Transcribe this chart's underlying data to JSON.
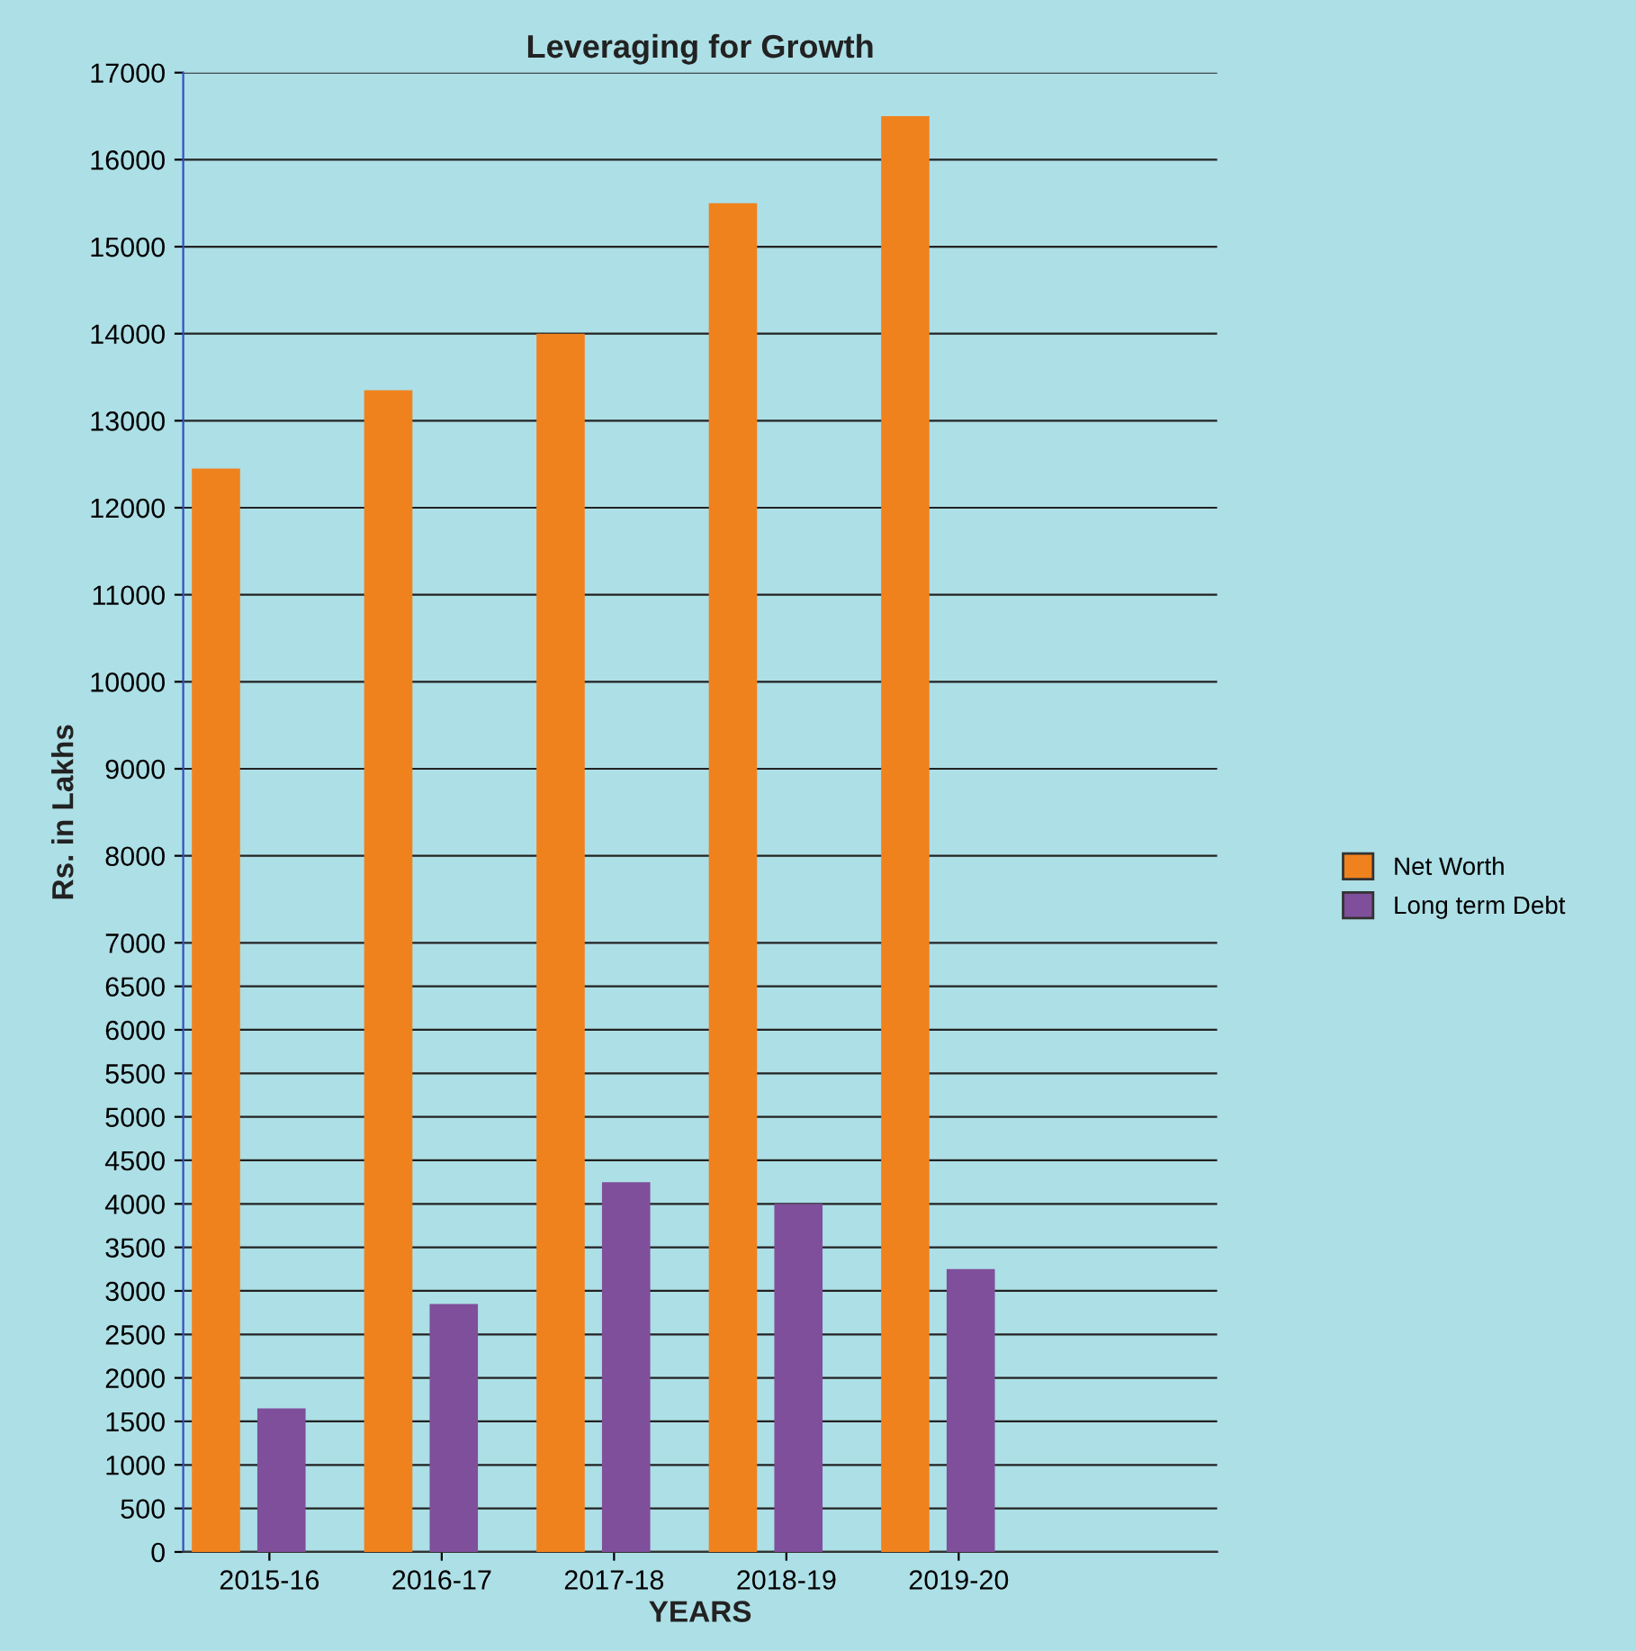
{
  "chart_data": {
    "type": "bar",
    "title": "Leveraging for Growth",
    "xlabel": "YEARS",
    "ylabel": "Rs. in Lakhs",
    "categories": [
      "2015-16",
      "2016-17",
      "2017-18",
      "2018-19",
      "2019-20"
    ],
    "series": [
      {
        "name": "Net Worth",
        "color": "#f0821e",
        "values": [
          12450,
          13350,
          14000,
          15500,
          16500
        ]
      },
      {
        "name": "Long term Debt",
        "color": "#7f4f9b",
        "values": [
          1650,
          2850,
          4250,
          4000,
          3250
        ]
      }
    ],
    "ylim": [
      0,
      17000
    ],
    "yticks": [
      0,
      500,
      1000,
      1500,
      2000,
      2500,
      3000,
      3500,
      4000,
      4500,
      5000,
      5500,
      6000,
      6500,
      7000,
      8000,
      9000,
      10000,
      11000,
      12000,
      13000,
      14000,
      15000,
      16000,
      17000
    ],
    "grid": "y",
    "legend": "right"
  }
}
